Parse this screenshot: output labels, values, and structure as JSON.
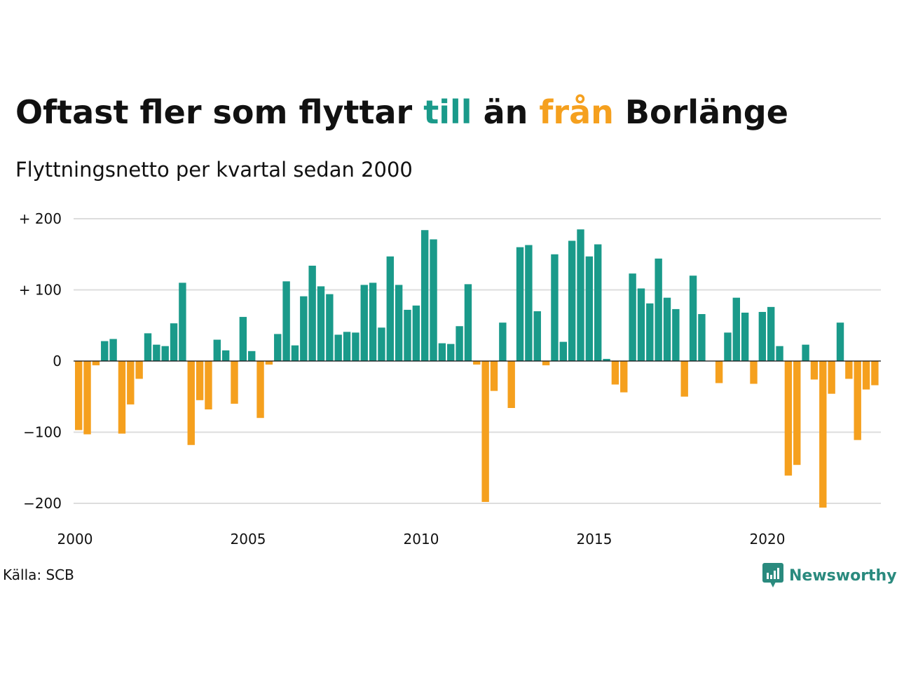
{
  "title": {
    "part1": "Oftast fler som flyttar ",
    "part_to": "till",
    "part2": " än ",
    "part_from": "från",
    "part3": " Borlänge"
  },
  "subtitle": "Flyttningsnetto per kvartal sedan 2000",
  "source": "Källa: SCB",
  "brand": "Newsworthy",
  "colors": {
    "positive": "#1a9a8a",
    "negative": "#f5a01e",
    "grid": "#dddddd",
    "zero": "#111111",
    "brand": "#2a8a7e"
  },
  "chart_data": {
    "type": "bar",
    "x_start": "2000 Q1",
    "x_ticks": [
      "2000",
      "2005",
      "2010",
      "2015",
      "2020"
    ],
    "y_ticks": [
      "+ 200",
      "+ 100",
      "0",
      "−100",
      "−200"
    ],
    "y_tick_values": [
      200,
      100,
      0,
      -100,
      -200
    ],
    "ylim": [
      -205,
      200
    ],
    "values": [
      -97,
      -103,
      -6,
      28,
      31,
      -102,
      -61,
      -25,
      39,
      23,
      21,
      53,
      110,
      -118,
      -55,
      -68,
      30,
      15,
      -60,
      62,
      14,
      -80,
      -5,
      38,
      112,
      22,
      91,
      134,
      105,
      94,
      37,
      41,
      40,
      107,
      110,
      47,
      147,
      107,
      72,
      78,
      184,
      171,
      25,
      24,
      49,
      108,
      -5,
      -198,
      -42,
      54,
      -66,
      160,
      163,
      70,
      -6,
      150,
      27,
      169,
      185,
      147,
      164,
      3,
      -33,
      -44,
      123,
      102,
      81,
      144,
      89,
      73,
      -50,
      120,
      66,
      0,
      -31,
      40,
      89,
      68,
      -32,
      69,
      76,
      21,
      -161,
      -146,
      23,
      -26,
      -206,
      -46,
      54,
      -25,
      -111,
      -40,
      -34
    ]
  }
}
